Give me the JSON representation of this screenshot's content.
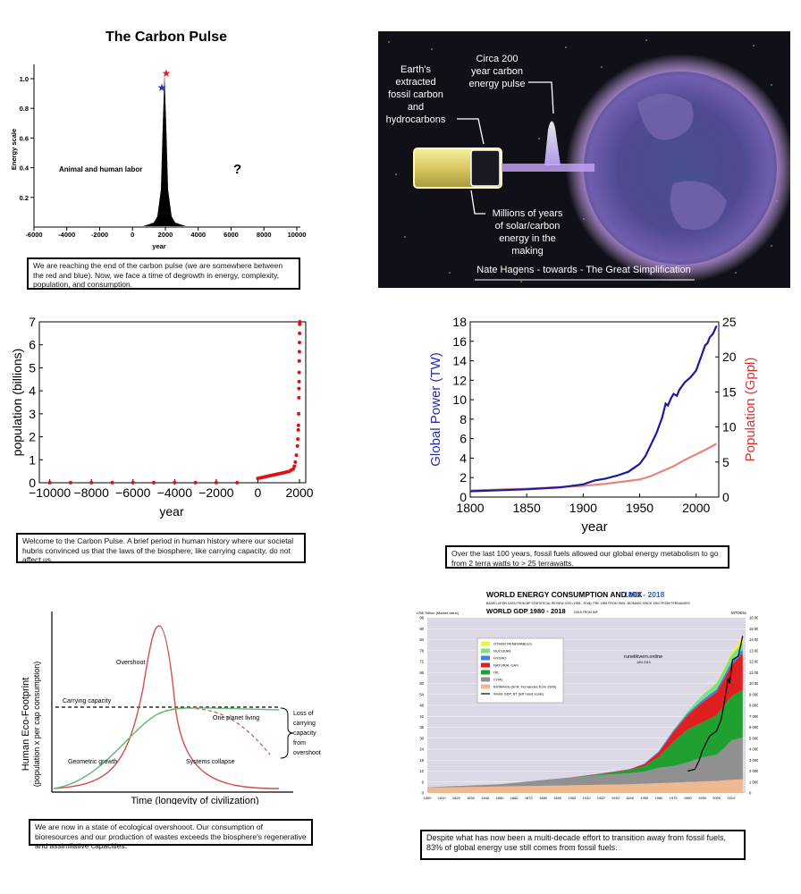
{
  "panel1": {
    "title": "The Carbon Pulse",
    "ylabel": "Energy scale",
    "xlabel": "year",
    "yticks": [
      "0.2",
      "0.4",
      "0.6",
      "0.8",
      "1.0"
    ],
    "xticks": [
      "-6000",
      "-4000",
      "-2000",
      "0",
      "2000",
      "4000",
      "6000",
      "8000",
      "10000"
    ],
    "left_label": "Animal and human labor",
    "question": "?",
    "caption": "We are reaching the end of the carbon pulse (we are somewhere between the red and blue). Now, we face a time of degrowth in energy, complexity, population, and consumption."
  },
  "panel2": {
    "label_fossil": [
      "Earth's",
      "extracted",
      "fossil carbon",
      "and",
      "hydrocarbons"
    ],
    "label_pulse": [
      "Circa 200",
      "year carbon",
      "energy pulse"
    ],
    "label_millions": [
      "Millions of years",
      "of solar/carbon",
      "energy in the",
      "making"
    ],
    "credit": "Nate Hagens - towards - The Great Simplification",
    "colors": {
      "bg": "#101018",
      "glow": "#c89cf0",
      "battery": "#e8dc8a"
    }
  },
  "panel3": {
    "ylabel": "population (billions)",
    "xlabel": "year",
    "yticks": [
      "0",
      "1",
      "2",
      "3",
      "4",
      "5",
      "6",
      "7"
    ],
    "xticks": [
      "−10000",
      "−8000",
      "−6000",
      "−4000",
      "−2000",
      "0",
      "2000"
    ],
    "caption": "Welcome to the Carbon Pulse. A brief period in human history where our societal hubris convinced us that the laws of the biosphere, like carrying capacity, do not affect us.",
    "marker_color": "#dd1111"
  },
  "panel4": {
    "ylabel_left": "Global Power (TW)",
    "ylabel_right": "Population (Gppl)",
    "xlabel": "year",
    "yticks_left": [
      "0",
      "2",
      "4",
      "6",
      "8",
      "10",
      "12",
      "14",
      "16",
      "18"
    ],
    "yticks_right": [
      "0",
      "5",
      "10",
      "15",
      "20",
      "25"
    ],
    "xticks": [
      "1800",
      "1850",
      "1900",
      "1950",
      "2000"
    ],
    "caption": "Over the last 100 years, fossil fuels allowed our global energy metabolism to go from 2 terra watts to > 25 terrawatts.",
    "colors": {
      "power": "#1a1aa0",
      "population": "#e8847a",
      "label_left": "#2a2ab0",
      "label_right": "#e03030"
    }
  },
  "panel5": {
    "ylabel1": "Human  Eco-Footprint",
    "ylabel2": "(population  x  per cap consumption)",
    "xlabel": "Time (longevity of civilization)",
    "overshoot": "Overshoot",
    "carrying": "Carrying capacity",
    "one_planet": "One planet living",
    "geometric": "Geometric growth",
    "collapse": "Systems collapse",
    "loss": [
      "Loss of",
      "carrying",
      "capacity",
      "from",
      "overshoot"
    ],
    "caption": "We are now in a state of ecological overshooot. Our consumption of bioresources and our production of wastes exceeds the biosphere's regenerative and assimilative capacities.",
    "colors": {
      "red": "#d0504a",
      "green": "#5cc070"
    }
  },
  "panel6": {
    "title": "WORLD ENERGY CONSUMPTION AND MIX",
    "title_years": "1800 - 2018",
    "subtitle": "BASED UPON DATA FROM BP STATISTICAL REVIEW 2019 (1965 - 2018), PRE 1965 FROM SMIL, BIOMASS SINCE 1900 FROM FERNANDES",
    "gdp_title": "WORLD GDP 1980 - 2018",
    "gdp_source": "DATA FROM IMF",
    "left_unit": "US$ Trillion (Market value)",
    "right_unit": "MTOE/a",
    "watermark": "runelikvern.online",
    "watermark_date": "JUN 2019",
    "left_ticks": [
      "0",
      "6",
      "12",
      "18",
      "24",
      "30",
      "36",
      "42",
      "48",
      "54",
      "60",
      "66",
      "72",
      "78",
      "84",
      "90",
      "96"
    ],
    "right_ticks": [
      "0",
      "1 000",
      "2 000",
      "3 000",
      "4 000",
      "5 000",
      "6 000",
      "7 000",
      "8 000",
      "9 000",
      "10 000",
      "11 000",
      "12 000",
      "13 000",
      "14 000",
      "15 000",
      "16 000"
    ],
    "x_ticks": [
      "1800",
      "1810",
      "1820",
      "1830",
      "1840",
      "1850",
      "1860",
      "1870",
      "1880",
      "1890",
      "1900",
      "1910",
      "1920",
      "1930",
      "1940",
      "1950",
      "1960",
      "1970",
      "1980",
      "1990",
      "2000",
      "2010"
    ],
    "legend": [
      {
        "label": "OTHER RENEWABLES",
        "color": "#f0f040"
      },
      {
        "label": "NUCLEAR",
        "color": "#80e080"
      },
      {
        "label": "HYDRO",
        "color": "#4080e0"
      },
      {
        "label": "NATURAL GAS",
        "color": "#e02020"
      },
      {
        "label": "OIL",
        "color": "#20a030"
      },
      {
        "label": "COAL",
        "color": "#909090"
      },
      {
        "label": "BIOMASS (Smil. Fernandes from 1900)",
        "color": "#f0b890"
      },
      {
        "label": "World GDP, $T (left hand scale)",
        "color": "#000000"
      }
    ],
    "caption": "Despite what has now been a multi-decade effort to transition away from fossil fuels, 83% of global energy use still comes from fossil fuels.",
    "plot_bg": "#dcd8e6"
  }
}
